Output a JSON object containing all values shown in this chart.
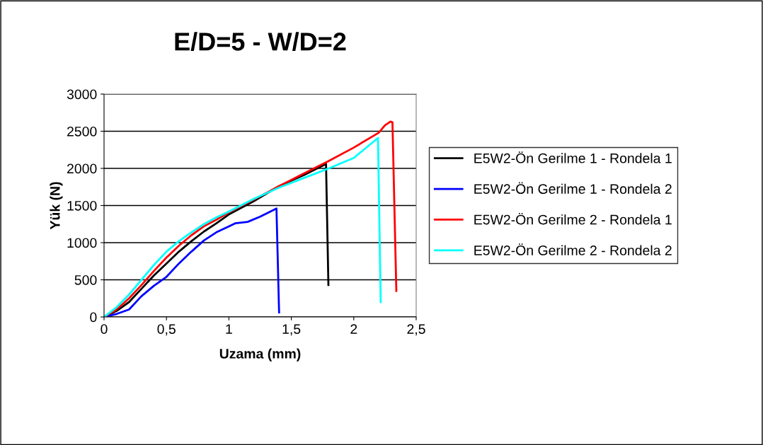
{
  "chart_data": {
    "type": "line",
    "title": "E/D=5 - W/D=2",
    "xlabel": "Uzama (mm)",
    "ylabel": "Yük (N)",
    "xlim": [
      0,
      2.5
    ],
    "xticks": [
      {
        "value": 0,
        "label": "0"
      },
      {
        "value": 0.5,
        "label": "0,5"
      },
      {
        "value": 1,
        "label": "1"
      },
      {
        "value": 1.5,
        "label": "1,5"
      },
      {
        "value": 2,
        "label": "2"
      },
      {
        "value": 2.5,
        "label": "2,5"
      }
    ],
    "ylim": [
      0,
      3000
    ],
    "yticks": [
      0,
      500,
      1000,
      1500,
      2000,
      2500,
      3000
    ],
    "grid": "y",
    "legend": "right",
    "marker": "none",
    "line_style": "solid",
    "series": [
      {
        "name": "E5W2-Ön Gerilme 1 - Rondela 1",
        "color": "#000000",
        "x": [
          0,
          0.1,
          0.2,
          0.3,
          0.4,
          0.5,
          0.6,
          0.7,
          0.8,
          0.9,
          1.0,
          1.2,
          1.4,
          1.6,
          1.778,
          1.797
        ],
        "values": [
          0,
          80,
          200,
          380,
          560,
          720,
          880,
          1020,
          1150,
          1260,
          1380,
          1560,
          1760,
          1910,
          2060,
          430
        ]
      },
      {
        "name": "E5W2-Ön Gerilme 1 - Rondela 2",
        "color": "#0000ff",
        "x": [
          0,
          0.1,
          0.2,
          0.3,
          0.4,
          0.5,
          0.6,
          0.7,
          0.8,
          0.9,
          1.0,
          1.05,
          1.15,
          1.25,
          1.381,
          1.402
        ],
        "values": [
          0,
          40,
          100,
          280,
          420,
          540,
          720,
          880,
          1030,
          1140,
          1220,
          1260,
          1280,
          1350,
          1460,
          60
        ]
      },
      {
        "name": "E5W2-Ön Gerilme 2 - Rondela 1",
        "color": "#ff0000",
        "x": [
          0,
          0.1,
          0.2,
          0.3,
          0.4,
          0.5,
          0.6,
          0.7,
          0.8,
          0.9,
          1.0,
          1.2,
          1.4,
          1.6,
          1.8,
          2.0,
          2.2,
          2.25,
          2.294,
          2.31,
          2.341
        ],
        "values": [
          0,
          100,
          250,
          430,
          620,
          800,
          960,
          1100,
          1220,
          1310,
          1410,
          1580,
          1760,
          1930,
          2100,
          2280,
          2480,
          2580,
          2630,
          2620,
          350
        ]
      },
      {
        "name": "E5W2-Ön Gerilme 2 - Rondela 2",
        "color": "#00ffff",
        "x": [
          0,
          0.1,
          0.2,
          0.3,
          0.4,
          0.5,
          0.6,
          0.7,
          0.8,
          0.9,
          1.0,
          1.2,
          1.4,
          1.6,
          1.8,
          2.0,
          2.194,
          2.216
        ],
        "values": [
          0,
          130,
          300,
          500,
          700,
          880,
          1020,
          1140,
          1250,
          1340,
          1420,
          1590,
          1740,
          1870,
          2000,
          2140,
          2410,
          200
        ]
      }
    ]
  }
}
